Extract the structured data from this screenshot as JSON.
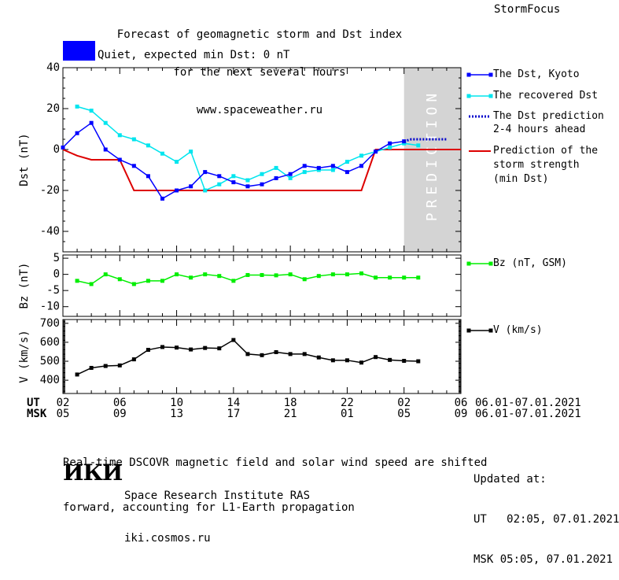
{
  "header": {
    "title_lines": [
      "Forecast of geomagnetic storm and Dst index",
      "for the next several hours",
      "www.spaceweather.ru"
    ],
    "brand": "StormFocus"
  },
  "status": {
    "text": "Quiet, expected min Dst: 0 nT",
    "color": "#0000ff"
  },
  "prediction_band_label": "PREDICTION",
  "axes": {
    "dst_ylabel": "Dst (nT)",
    "bz_ylabel": "Bz (nT)",
    "v_ylabel": "V (km/s)",
    "ut_label": "UT",
    "msk_label": "MSK",
    "ut_ticks": [
      "02",
      "06",
      "10",
      "14",
      "18",
      "22",
      "02",
      "06"
    ],
    "msk_ticks": [
      "05",
      "09",
      "13",
      "17",
      "21",
      "01",
      "05",
      "09"
    ],
    "ut_range": "06.01-07.01.2021",
    "msk_range": "06.01-07.01.2021"
  },
  "legend": {
    "dst": "The Dst, Kyoto",
    "recovered": "The recovered Dst",
    "prediction_lines": [
      "The Dst prediction",
      "2-4 hours ahead"
    ],
    "strength_lines": [
      "Prediction of the",
      "storm strength",
      "(min Dst)"
    ],
    "bz": "Bz (nT, GSM)",
    "v": "V (km/s)"
  },
  "colors": {
    "dst": "#0000ff",
    "recovered": "#00e5ee",
    "prediction": "#0000cc",
    "strength": "#dd0000",
    "bz": "#00ee00",
    "v": "#000000",
    "band": "#d4d4d4"
  },
  "footer": {
    "note_lines": [
      "Real-time DSCOVR magnetic field and solar wind speed are shifted",
      "forward, accounting for L1-Earth propagation"
    ],
    "logo": "ИКИ",
    "institute_lines": [
      "Space Research Institute RAS",
      "iki.cosmos.ru"
    ],
    "updated_lines": [
      "Updated at:",
      "UT   02:05, 07.01.2021",
      "MSK 05:05, 07.01.2021"
    ]
  },
  "chart_data": [
    {
      "type": "line",
      "ylabel": "Dst (nT)",
      "xlabel": "UT",
      "xlim": [
        2,
        30
      ],
      "ylim": [
        -50,
        40
      ],
      "yticks": [
        -40,
        -20,
        0,
        20,
        40
      ],
      "prediction_band": [
        26,
        30
      ],
      "series": [
        {
          "name": "The Dst, Kyoto",
          "x": [
            2,
            3,
            4,
            5,
            6,
            7,
            8,
            9,
            10,
            11,
            12,
            13,
            14,
            15,
            16,
            17,
            18,
            19,
            20,
            21,
            22,
            23,
            24,
            25,
            26
          ],
          "y": [
            1,
            8,
            13,
            0,
            -5,
            -8,
            -13,
            -24,
            -20,
            -18,
            -11,
            -13,
            -16,
            -18,
            -17,
            -14,
            -12,
            -8,
            -9,
            -8,
            -11,
            -8,
            -1,
            3,
            4
          ]
        },
        {
          "name": "The recovered Dst",
          "x": [
            3,
            4,
            5,
            6,
            7,
            8,
            9,
            10,
            11,
            12,
            13,
            14,
            15,
            16,
            17,
            18,
            19,
            20,
            21,
            22,
            23,
            24,
            25,
            26,
            27
          ],
          "y": [
            21,
            19,
            13,
            7,
            5,
            2,
            -2,
            -6,
            -1,
            -20,
            -17,
            -13,
            -15,
            -12,
            -9,
            -14,
            -11,
            -10,
            -10,
            -6,
            -3,
            -1,
            1,
            3,
            2
          ]
        },
        {
          "name": "The Dst prediction 2-4 hours ahead",
          "x": [
            26,
            26.5,
            27,
            28,
            29
          ],
          "y": [
            4,
            5,
            5,
            5,
            5
          ]
        },
        {
          "name": "Prediction of the storm strength (min Dst)",
          "x": [
            2,
            3,
            4,
            6,
            7,
            8,
            23,
            24,
            26,
            30
          ],
          "y": [
            0,
            -3,
            -5,
            -5,
            -20,
            -20,
            -20,
            0,
            0,
            0
          ]
        }
      ]
    },
    {
      "type": "line",
      "ylabel": "Bz (nT)",
      "xlim": [
        2,
        30
      ],
      "ylim": [
        -13,
        6
      ],
      "yticks": [
        -10,
        -5,
        0,
        5
      ],
      "series": [
        {
          "name": "Bz (nT, GSM)",
          "x": [
            3,
            4,
            5,
            6,
            7,
            8,
            9,
            10,
            11,
            12,
            13,
            14,
            15,
            16,
            17,
            18,
            19,
            20,
            21,
            22,
            23,
            24,
            25,
            26,
            27
          ],
          "y": [
            -2,
            -3,
            0,
            -1.5,
            -3,
            -2,
            -2,
            0,
            -1,
            0,
            -0.5,
            -2,
            -0.2,
            -0.2,
            -0.3,
            0,
            -1.5,
            -0.5,
            0,
            0,
            0.3,
            -1,
            -1,
            -1,
            -1
          ]
        }
      ]
    },
    {
      "type": "line",
      "ylabel": "V (km/s)",
      "xlim": [
        2,
        30
      ],
      "ylim": [
        330,
        720
      ],
      "yticks": [
        400,
        500,
        600,
        700
      ],
      "series": [
        {
          "name": "V (km/s)",
          "x": [
            3,
            4,
            5,
            6,
            7,
            8,
            9,
            10,
            11,
            12,
            13,
            14,
            15,
            16,
            17,
            18,
            19,
            20,
            21,
            22,
            23,
            24,
            25,
            26,
            27
          ],
          "y": [
            430,
            465,
            475,
            478,
            510,
            560,
            575,
            572,
            562,
            570,
            568,
            612,
            538,
            532,
            548,
            538,
            538,
            520,
            505,
            505,
            493,
            522,
            507,
            502,
            500
          ]
        }
      ]
    }
  ]
}
